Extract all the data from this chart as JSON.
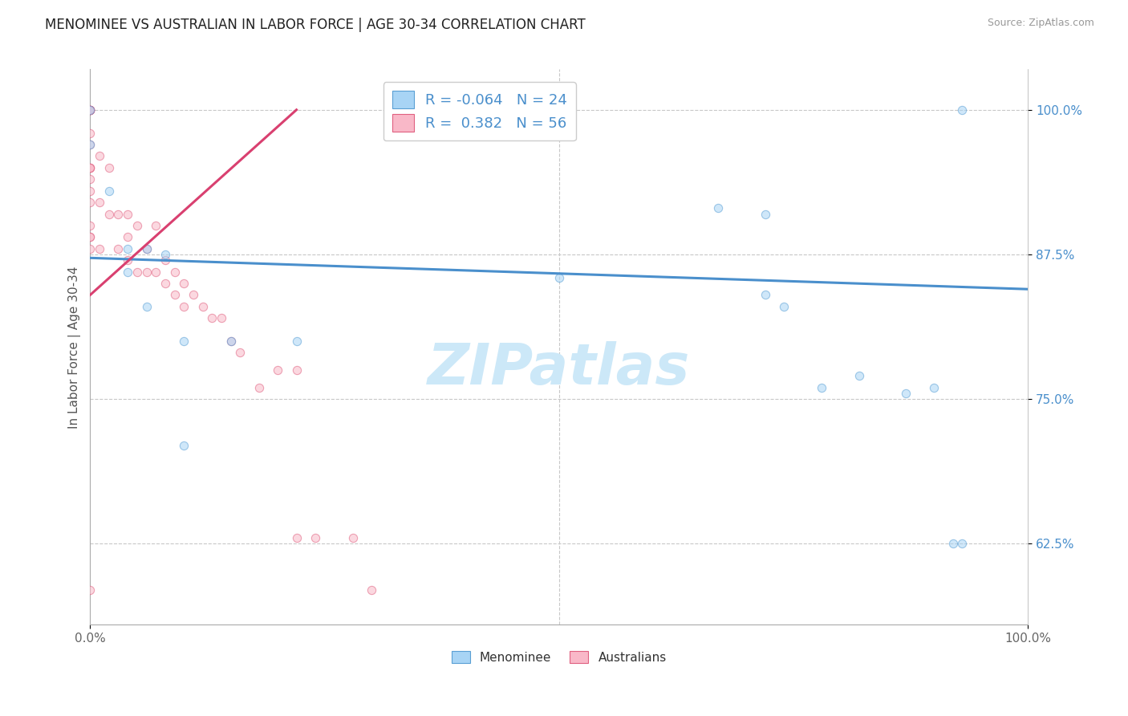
{
  "title": "MENOMINEE VS AUSTRALIAN IN LABOR FORCE | AGE 30-34 CORRELATION CHART",
  "source": "Source: ZipAtlas.com",
  "ylabel": "In Labor Force | Age 30-34",
  "watermark": "ZIPatlas",
  "xlim": [
    0.0,
    1.0
  ],
  "ylim": [
    0.555,
    1.035
  ],
  "ytick_labels": [
    "62.5%",
    "75.0%",
    "87.5%",
    "100.0%"
  ],
  "ytick_values": [
    0.625,
    0.75,
    0.875,
    1.0
  ],
  "xtick_labels": [
    "0.0%",
    "100.0%"
  ],
  "xtick_values": [
    0.0,
    1.0
  ],
  "legend_r_blue": "-0.064",
  "legend_n_blue": "24",
  "legend_r_pink": "0.382",
  "legend_n_pink": "56",
  "blue_scatter_x": [
    0.0,
    0.0,
    0.02,
    0.04,
    0.04,
    0.06,
    0.06,
    0.08,
    0.1,
    0.1,
    0.15,
    0.22,
    0.5,
    0.67,
    0.72,
    0.74,
    0.78,
    0.82,
    0.87,
    0.9,
    0.92,
    0.93,
    0.93,
    0.72
  ],
  "blue_scatter_y": [
    1.0,
    0.97,
    0.93,
    0.88,
    0.86,
    0.88,
    0.83,
    0.875,
    0.8,
    0.71,
    0.8,
    0.8,
    0.855,
    0.915,
    0.84,
    0.83,
    0.76,
    0.77,
    0.755,
    0.76,
    0.625,
    0.625,
    1.0,
    0.91
  ],
  "pink_scatter_x": [
    0.0,
    0.0,
    0.0,
    0.0,
    0.0,
    0.0,
    0.0,
    0.0,
    0.0,
    0.0,
    0.0,
    0.0,
    0.0,
    0.0,
    0.0,
    0.0,
    0.0,
    0.0,
    0.01,
    0.01,
    0.01,
    0.02,
    0.02,
    0.03,
    0.03,
    0.04,
    0.04,
    0.04,
    0.05,
    0.05,
    0.06,
    0.06,
    0.07,
    0.07,
    0.08,
    0.08,
    0.09,
    0.09,
    0.1,
    0.1,
    0.11,
    0.12,
    0.13,
    0.14,
    0.15,
    0.16,
    0.2,
    0.22,
    0.22,
    0.24,
    0.28,
    0.3,
    0.18,
    0.0,
    0.0,
    0.0
  ],
  "pink_scatter_y": [
    1.0,
    1.0,
    1.0,
    1.0,
    1.0,
    1.0,
    1.0,
    0.98,
    0.97,
    0.95,
    0.94,
    0.93,
    0.92,
    0.9,
    0.89,
    0.89,
    0.88,
    0.585,
    0.96,
    0.92,
    0.88,
    0.95,
    0.91,
    0.91,
    0.88,
    0.91,
    0.89,
    0.87,
    0.9,
    0.86,
    0.88,
    0.86,
    0.9,
    0.86,
    0.87,
    0.85,
    0.86,
    0.84,
    0.85,
    0.83,
    0.84,
    0.83,
    0.82,
    0.82,
    0.8,
    0.79,
    0.775,
    0.775,
    0.63,
    0.63,
    0.63,
    0.585,
    0.76,
    0.95,
    0.95,
    1.0
  ],
  "blue_line_x": [
    0.0,
    1.0
  ],
  "blue_line_y": [
    0.872,
    0.845
  ],
  "pink_line_x": [
    0.0,
    0.22
  ],
  "pink_line_y": [
    0.84,
    1.0
  ],
  "blue_color": "#a8d4f5",
  "pink_color": "#f9b8c8",
  "blue_edge_color": "#5a9fd4",
  "pink_edge_color": "#e06080",
  "blue_line_color": "#4a8fcc",
  "pink_line_color": "#d94070",
  "grid_color": "#c8c8c8",
  "background_color": "#ffffff",
  "title_fontsize": 12,
  "label_fontsize": 11,
  "legend_fontsize": 13,
  "watermark_fontsize": 52,
  "scatter_size": 55,
  "scatter_alpha": 0.55
}
